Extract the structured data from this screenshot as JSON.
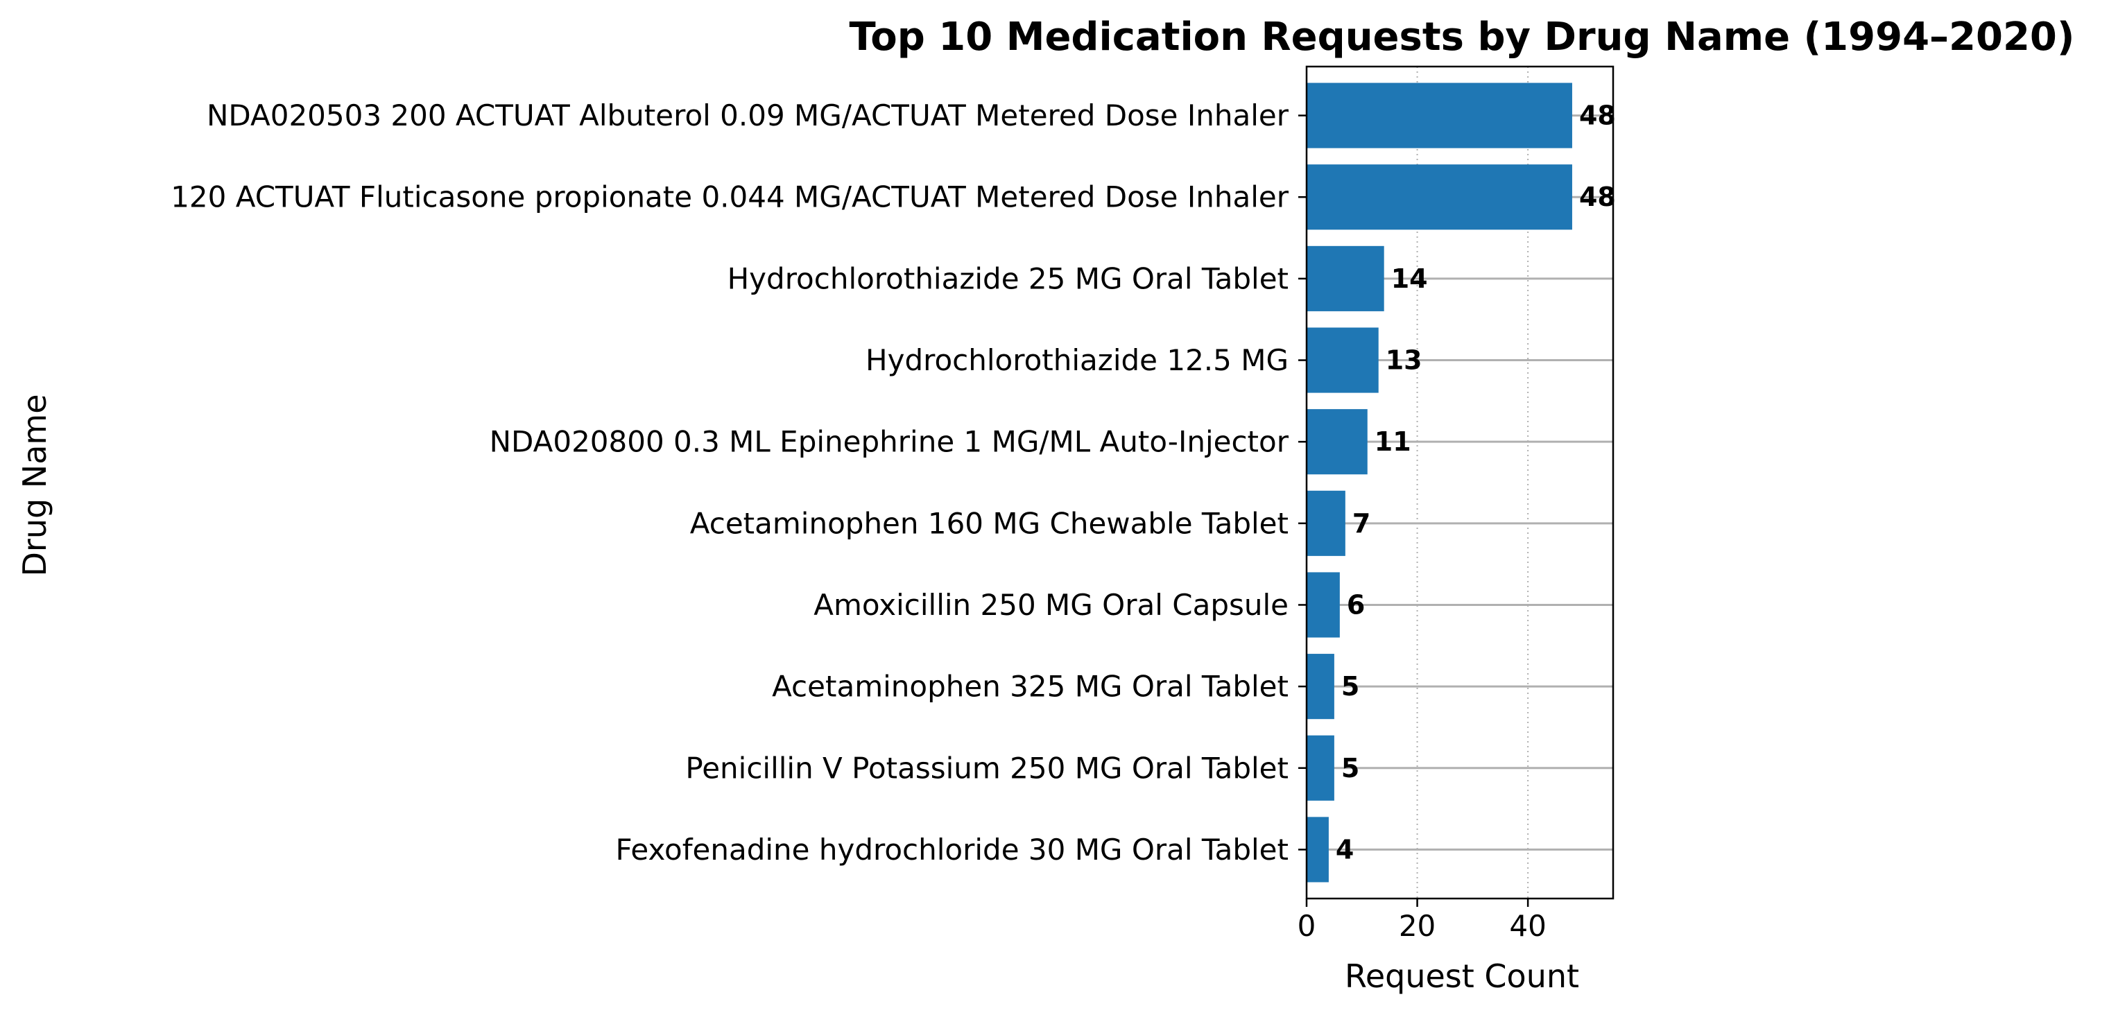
{
  "chart_data": {
    "type": "bar",
    "orientation": "horizontal",
    "title": "Top 10 Medication Requests by Drug Name (1994–2020)",
    "xlabel": "Request Count",
    "ylabel": "Drug Name",
    "categories": [
      "NDA020503 200 ACTUAT Albuterol 0.09 MG/ACTUAT Metered Dose Inhaler",
      "120 ACTUAT Fluticasone propionate 0.044 MG/ACTUAT Metered Dose Inhaler",
      "Hydrochlorothiazide 25 MG Oral Tablet",
      "Hydrochlorothiazide 12.5 MG",
      "NDA020800 0.3 ML Epinephrine 1 MG/ML Auto-Injector",
      "Acetaminophen 160 MG Chewable Tablet",
      "Amoxicillin 250 MG Oral Capsule",
      "Acetaminophen 325 MG Oral Tablet",
      "Penicillin V Potassium 250 MG Oral Tablet",
      "Fexofenadine hydrochloride 30 MG Oral Tablet"
    ],
    "values": [
      48,
      48,
      14,
      13,
      11,
      7,
      6,
      5,
      5,
      4
    ],
    "data_labels": [
      "48",
      "48",
      "14",
      "13",
      "11",
      "7",
      "6",
      "5",
      "5",
      "4"
    ],
    "xlim": [
      0,
      55.4
    ],
    "xticks": [
      0,
      20,
      40
    ],
    "xtick_labels": [
      "0",
      "20",
      "40"
    ],
    "x_grid": "dotted",
    "row_guides": true,
    "legend": "none",
    "colors": {
      "bar": "#1f77b4",
      "grid": "#b0b0b0",
      "axis": "#000000"
    }
  }
}
